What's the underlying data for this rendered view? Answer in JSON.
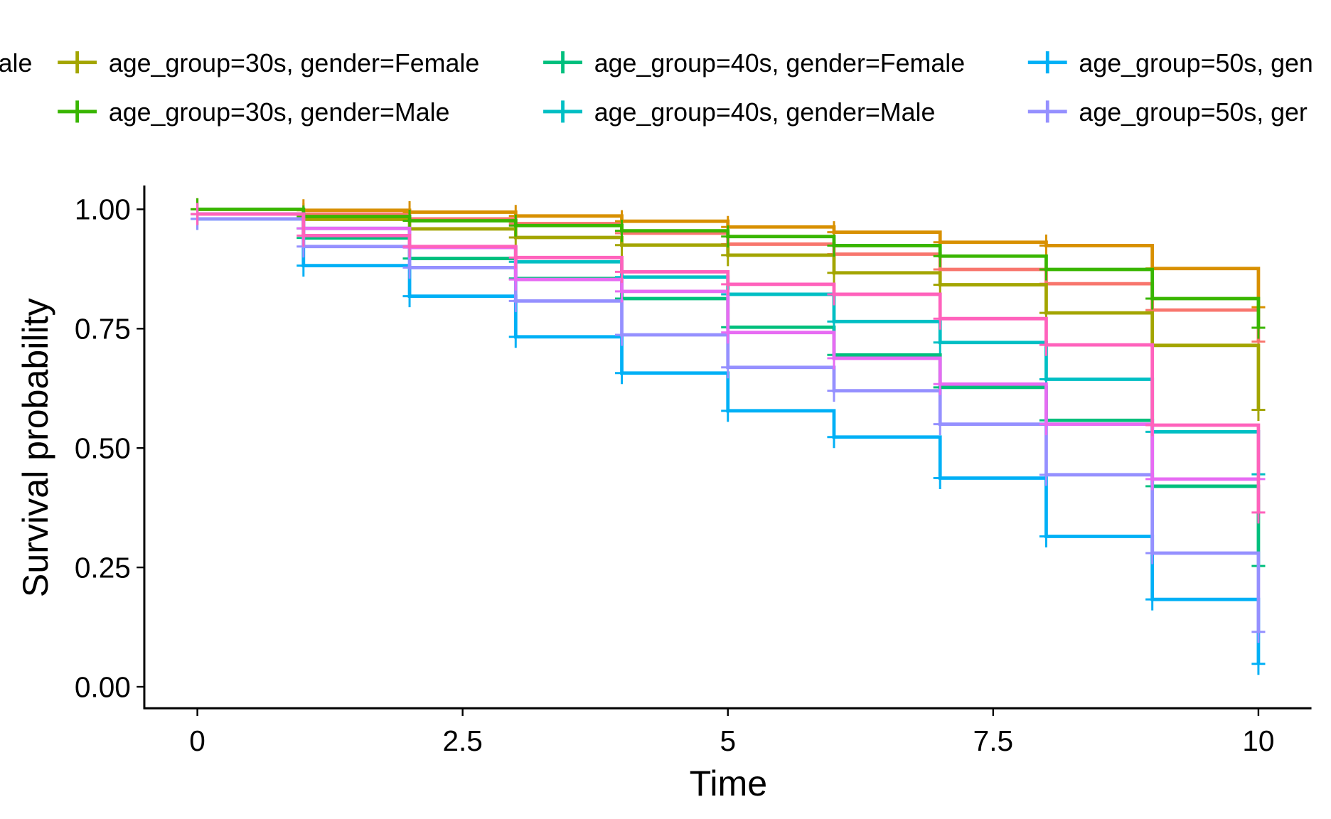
{
  "chart_data": {
    "type": "step",
    "x_label": "Time",
    "y_label": "Survival probability",
    "x": [
      0,
      1,
      2,
      3,
      4,
      5,
      6,
      7,
      8,
      9,
      10
    ],
    "xlim": [
      -0.5,
      10.5
    ],
    "xticks": [
      0,
      2.5,
      5,
      7.5,
      10
    ],
    "ylim": [
      -0.045,
      1.05
    ],
    "yticks": [
      {
        "value": 0,
        "label": "0.00"
      },
      {
        "value": 0.25,
        "label": "0.25"
      },
      {
        "value": 0.5,
        "label": "0.50"
      },
      {
        "value": 0.75,
        "label": "0.75"
      },
      {
        "value": 1,
        "label": "1.00"
      }
    ],
    "grid": false,
    "series": [
      {
        "name": "ale",
        "color": "#F8766D",
        "values": [
          1.0,
          0.99,
          0.98,
          0.97,
          0.95,
          0.927,
          0.906,
          0.874,
          0.844,
          0.789,
          0.723
        ]
      },
      {
        "color": "#D89000",
        "values": [
          1.0,
          0.998,
          0.994,
          0.986,
          0.975,
          0.963,
          0.952,
          0.931,
          0.924,
          0.876,
          0.795
        ]
      },
      {
        "name": "age_group=30s, gender=Female",
        "color": "#A3A500",
        "values": [
          0.99,
          0.979,
          0.959,
          0.941,
          0.925,
          0.904,
          0.867,
          0.842,
          0.783,
          0.715,
          0.58
        ]
      },
      {
        "name": "age_group=30s, gender=Male",
        "color": "#39B600",
        "values": [
          1.0,
          0.985,
          0.976,
          0.966,
          0.955,
          0.943,
          0.924,
          0.902,
          0.874,
          0.813,
          0.752
        ]
      },
      {
        "name": "age_group=40s, gender=Female",
        "color": "#00BF7D",
        "values": [
          0.99,
          0.94,
          0.897,
          0.855,
          0.813,
          0.753,
          0.695,
          0.627,
          0.558,
          0.42,
          0.253
        ]
      },
      {
        "name": "age_group=40s, gender=Male",
        "color": "#00BFC4",
        "values": [
          0.99,
          0.96,
          0.92,
          0.89,
          0.858,
          0.822,
          0.765,
          0.721,
          0.644,
          0.534,
          0.445
        ]
      },
      {
        "name": "age_group=50s, gen",
        "color": "#00B0F6",
        "values": [
          0.98,
          0.882,
          0.818,
          0.733,
          0.657,
          0.578,
          0.523,
          0.437,
          0.315,
          0.183,
          0.048
        ]
      },
      {
        "name": "age_group=50s, ger",
        "color": "#9590FF",
        "values": [
          0.98,
          0.922,
          0.878,
          0.808,
          0.737,
          0.669,
          0.62,
          0.55,
          0.444,
          0.28,
          0.115
        ]
      },
      {
        "color": "#E76BF3",
        "values": [
          0.99,
          0.96,
          0.92,
          0.853,
          0.828,
          0.742,
          0.688,
          0.634,
          0.55,
          0.435,
          0.435
        ]
      },
      {
        "color": "#FF62BC",
        "values": [
          0.99,
          0.945,
          0.922,
          0.899,
          0.869,
          0.843,
          0.822,
          0.771,
          0.716,
          0.548,
          0.365
        ]
      }
    ]
  }
}
